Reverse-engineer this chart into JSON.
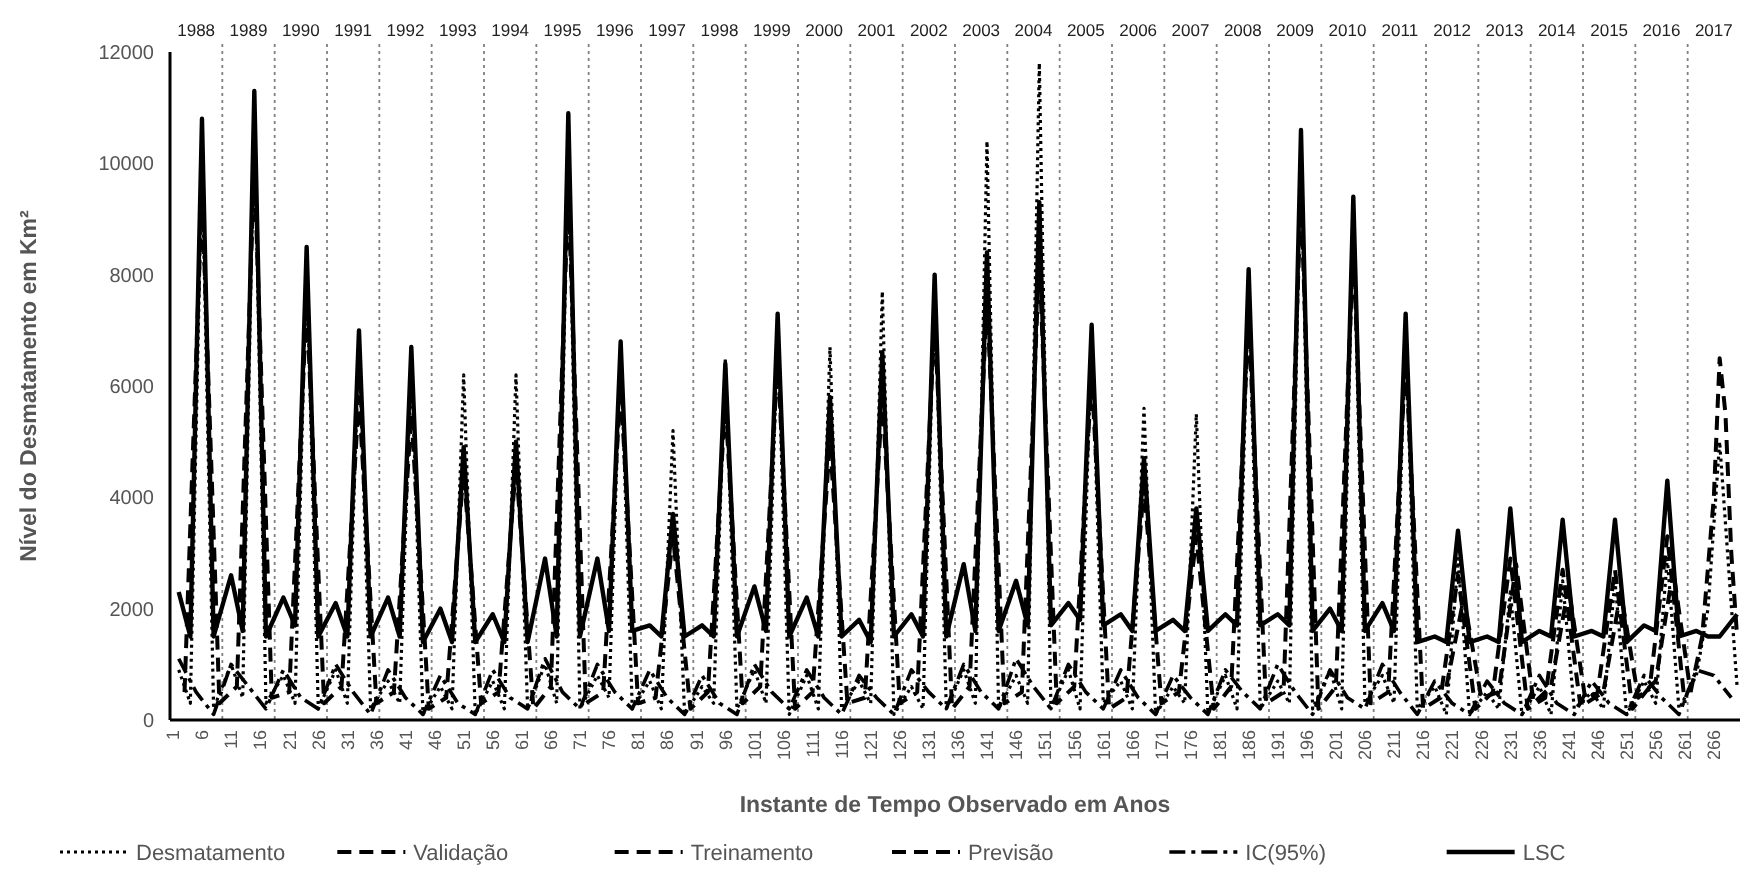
{
  "chart_data": {
    "type": "line",
    "xlabel": "Instante de Tempo Observado em Anos",
    "ylabel": "Nível do Desmatamento em Km²",
    "xlim": [
      0.5,
      270.5
    ],
    "ylim": [
      0,
      12000
    ],
    "xticks": [
      1,
      6,
      11,
      16,
      21,
      26,
      31,
      36,
      41,
      46,
      51,
      56,
      61,
      66,
      71,
      76,
      81,
      86,
      91,
      96,
      101,
      106,
      111,
      116,
      121,
      126,
      131,
      136,
      141,
      146,
      151,
      156,
      161,
      166,
      171,
      176,
      181,
      186,
      191,
      196,
      201,
      206,
      211,
      216,
      221,
      226,
      231,
      236,
      241,
      246,
      251,
      256,
      261,
      266
    ],
    "yticks": [
      0,
      2000,
      4000,
      6000,
      8000,
      10000,
      12000
    ],
    "legend": "bottom",
    "x2lim": [
      1987.5,
      2017.5
    ],
    "x2ticks": [
      1988,
      1989,
      1990,
      1991,
      1992,
      1993,
      1994,
      1995,
      1996,
      1997,
      1998,
      1999,
      2000,
      2001,
      2002,
      2003,
      2004,
      2005,
      2006,
      2007,
      2008,
      2009,
      2010,
      2011,
      2012,
      2013,
      2014,
      2015,
      2016,
      2017
    ],
    "ref_lines": [
      {
        "axis": "x",
        "value": 9.5,
        "color": "#808080",
        "line_style": "dotted"
      },
      {
        "axis": "x",
        "value": 18.5,
        "color": "#808080",
        "line_style": "dotted"
      },
      {
        "axis": "x",
        "value": 27.5,
        "color": "#808080",
        "line_style": "dotted"
      },
      {
        "axis": "x",
        "value": 36.5,
        "color": "#808080",
        "line_style": "dotted"
      },
      {
        "axis": "x",
        "value": 45.5,
        "color": "#808080",
        "line_style": "dotted"
      },
      {
        "axis": "x",
        "value": 54.5,
        "color": "#808080",
        "line_style": "dotted"
      },
      {
        "axis": "x",
        "value": 63.5,
        "color": "#808080",
        "line_style": "dotted"
      },
      {
        "axis": "x",
        "value": 72.5,
        "color": "#808080",
        "line_style": "dotted"
      },
      {
        "axis": "x",
        "value": 81.5,
        "color": "#808080",
        "line_style": "dotted"
      },
      {
        "axis": "x",
        "value": 90.5,
        "color": "#808080",
        "line_style": "dotted"
      },
      {
        "axis": "x",
        "value": 99.5,
        "color": "#808080",
        "line_style": "dotted"
      },
      {
        "axis": "x",
        "value": 108.5,
        "color": "#808080",
        "line_style": "dotted"
      },
      {
        "axis": "x",
        "value": 117.5,
        "color": "#808080",
        "line_style": "dotted"
      },
      {
        "axis": "x",
        "value": 126.5,
        "color": "#808080",
        "line_style": "dotted"
      },
      {
        "axis": "x",
        "value": 135.5,
        "color": "#808080",
        "line_style": "dotted"
      },
      {
        "axis": "x",
        "value": 144.5,
        "color": "#808080",
        "line_style": "dotted"
      },
      {
        "axis": "x",
        "value": 153.5,
        "color": "#808080",
        "line_style": "dotted"
      },
      {
        "axis": "x",
        "value": 162.5,
        "color": "#808080",
        "line_style": "dotted"
      },
      {
        "axis": "x",
        "value": 171.5,
        "color": "#808080",
        "line_style": "dotted"
      },
      {
        "axis": "x",
        "value": 180.5,
        "color": "#808080",
        "line_style": "dotted"
      },
      {
        "axis": "x",
        "value": 189.5,
        "color": "#808080",
        "line_style": "dotted"
      },
      {
        "axis": "x",
        "value": 198.5,
        "color": "#808080",
        "line_style": "dotted"
      },
      {
        "axis": "x",
        "value": 207.5,
        "color": "#808080",
        "line_style": "dotted"
      },
      {
        "axis": "x",
        "value": 216.5,
        "color": "#808080",
        "line_style": "dotted"
      },
      {
        "axis": "x",
        "value": 225.5,
        "color": "#808080",
        "line_style": "dotted"
      },
      {
        "axis": "x",
        "value": 234.5,
        "color": "#808080",
        "line_style": "dotted"
      },
      {
        "axis": "x",
        "value": 243.5,
        "color": "#808080",
        "line_style": "dotted"
      },
      {
        "axis": "x",
        "value": 252.5,
        "color": "#808080",
        "line_style": "dotted"
      },
      {
        "axis": "x",
        "value": 261.5,
        "color": "#808080",
        "line_style": "dotted"
      }
    ],
    "series": [
      {
        "name": "Desmatamento",
        "color": "#000000",
        "line_style": "dotted",
        "x": [
          2,
          4,
          6,
          8,
          11,
          13,
          15,
          17,
          20,
          22,
          24,
          26,
          29,
          31,
          33,
          35,
          38,
          40,
          42,
          44,
          47,
          49,
          51,
          53,
          56,
          58,
          60,
          62,
          65,
          67,
          69,
          71,
          74,
          76,
          78,
          80,
          83,
          85,
          87,
          89,
          92,
          94,
          96,
          98,
          101,
          103,
          105,
          107,
          110,
          112,
          114,
          116,
          119,
          121,
          123,
          125,
          128,
          130,
          132,
          134,
          137,
          139,
          141,
          143,
          146,
          148,
          150,
          152,
          155,
          157,
          159,
          161,
          164,
          166,
          168,
          170,
          173,
          175,
          177,
          179,
          182,
          184,
          186,
          188,
          191,
          193,
          195,
          197,
          200,
          202,
          204,
          206,
          209,
          211,
          213,
          215,
          218,
          220,
          222,
          224,
          227,
          229,
          231,
          233,
          236,
          238,
          240,
          242,
          245,
          247,
          249,
          251,
          254,
          256,
          258,
          260,
          263,
          265,
          267,
          270
        ],
        "values": [
          900,
          300,
          10100,
          200,
          1000,
          400,
          11000,
          300,
          800,
          300,
          8300,
          200,
          900,
          300,
          6800,
          200,
          700,
          300,
          6500,
          100,
          600,
          200,
          6200,
          100,
          700,
          200,
          6200,
          200,
          1000,
          300,
          10500,
          200,
          800,
          400,
          6700,
          200,
          700,
          200,
          5200,
          100,
          600,
          300,
          6500,
          200,
          900,
          300,
          7000,
          100,
          800,
          200,
          6700,
          200,
          700,
          300,
          7700,
          100,
          600,
          200,
          7900,
          200,
          900,
          300,
          10400,
          200,
          800,
          300,
          11800,
          200,
          900,
          200,
          6900,
          300,
          700,
          200,
          5600,
          100,
          600,
          300,
          5500,
          100,
          800,
          200,
          7900,
          200,
          700,
          300,
          10400,
          200,
          900,
          200,
          9200,
          300,
          800,
          300,
          7100,
          200,
          600,
          100,
          2900,
          100,
          500,
          200,
          2300,
          100,
          600,
          100,
          2500,
          200,
          500,
          200,
          2500,
          100,
          700,
          300,
          2900,
          200,
          800,
          2000,
          5000,
          600
        ]
      },
      {
        "name": "Validação",
        "color": "#000000",
        "line_style": "dashed",
        "x": [
          262,
          264,
          266,
          267,
          268,
          269,
          270
        ],
        "values": [
          500,
          1500,
          4000,
          6500,
          5500,
          3000,
          1500
        ]
      },
      {
        "name": "Treinamento",
        "color": "#000000",
        "line_style": "dashed",
        "x": [
          3,
          6,
          9,
          12,
          15,
          18,
          21,
          24,
          27,
          30,
          33,
          36,
          39,
          42,
          45,
          48,
          51,
          54,
          57,
          60,
          63,
          66,
          69,
          72,
          75,
          78,
          81,
          84,
          87,
          90,
          93,
          96,
          99,
          102,
          105,
          108,
          111,
          114,
          117,
          120,
          123,
          126,
          129,
          132,
          135,
          138,
          141,
          144,
          147,
          150,
          153,
          156,
          159,
          162,
          165,
          168,
          171,
          174,
          177,
          180,
          183,
          186,
          189,
          192,
          195,
          198,
          201,
          204,
          207,
          210,
          213,
          216,
          219,
          222,
          225,
          228,
          231,
          234,
          237,
          240,
          243,
          246,
          249,
          252,
          255,
          258,
          261
        ],
        "values": [
          500,
          9500,
          300,
          600,
          10000,
          400,
          500,
          7500,
          300,
          600,
          5800,
          300,
          500,
          5500,
          200,
          400,
          4500,
          300,
          500,
          4600,
          200,
          600,
          9500,
          300,
          500,
          6000,
          300,
          400,
          3300,
          200,
          500,
          5700,
          300,
          600,
          6500,
          200,
          500,
          5000,
          300,
          400,
          5800,
          300,
          500,
          7200,
          200,
          600,
          7600,
          300,
          500,
          8300,
          300,
          600,
          6200,
          200,
          400,
          4200,
          300,
          500,
          3300,
          200,
          600,
          7200,
          300,
          500,
          9400,
          200,
          600,
          8500,
          300,
          500,
          6500,
          200,
          400,
          2600,
          200,
          500,
          2900,
          200,
          400,
          2700,
          300,
          500,
          2700,
          200,
          600,
          3300,
          300
        ]
      },
      {
        "name": "Previsão",
        "color": "#000000",
        "line_style": "dashed",
        "x": [
          220,
          223,
          226,
          229,
          232,
          235,
          238,
          241,
          244,
          247,
          250,
          253,
          256,
          259,
          262
        ],
        "values": [
          600,
          2200,
          400,
          500,
          2800,
          300,
          600,
          2400,
          300,
          500,
          2300,
          400,
          700,
          2700,
          500
        ]
      },
      {
        "name": "IC(95%)",
        "color": "#000000",
        "line_style": "dashdot",
        "x": [
          2,
          5,
          8,
          11,
          14,
          17,
          20,
          23,
          26,
          29,
          32,
          35,
          38,
          41,
          44,
          47,
          50,
          53,
          56,
          59,
          62,
          65,
          68,
          71,
          74,
          77,
          80,
          83,
          86,
          89,
          92,
          95,
          98,
          101,
          104,
          107,
          110,
          113,
          116,
          119,
          122,
          125,
          128,
          131,
          134,
          137,
          140,
          143,
          146,
          149,
          152,
          155,
          158,
          161,
          164,
          167,
          170,
          173,
          176,
          179,
          182,
          185,
          188,
          191,
          194,
          197,
          200,
          203,
          206,
          209,
          212,
          215,
          218,
          221,
          224,
          227,
          230,
          233,
          236,
          239,
          242,
          245,
          248,
          251,
          254,
          257,
          260,
          263,
          266,
          269
        ],
        "values": [
          1100,
          500,
          100,
          1000,
          600,
          200,
          900,
          400,
          200,
          1000,
          500,
          100,
          900,
          400,
          100,
          800,
          300,
          100,
          900,
          400,
          200,
          1100,
          500,
          200,
          1000,
          500,
          200,
          900,
          400,
          100,
          800,
          300,
          100,
          1000,
          500,
          200,
          900,
          400,
          100,
          800,
          400,
          100,
          900,
          500,
          200,
          1000,
          500,
          200,
          1100,
          600,
          200,
          1000,
          500,
          200,
          900,
          400,
          100,
          800,
          400,
          100,
          900,
          500,
          200,
          1000,
          500,
          100,
          900,
          400,
          200,
          1000,
          500,
          100,
          700,
          300,
          100,
          700,
          300,
          100,
          800,
          300,
          100,
          700,
          300,
          100,
          800,
          400,
          100,
          900,
          800,
          400
        ]
      },
      {
        "name": "LSC",
        "color": "#000000",
        "line_style": "solid",
        "x": [
          2,
          4,
          6,
          8,
          11,
          13,
          15,
          17,
          20,
          22,
          24,
          26,
          29,
          31,
          33,
          35,
          38,
          40,
          42,
          44,
          47,
          49,
          51,
          53,
          56,
          58,
          60,
          62,
          65,
          67,
          69,
          71,
          74,
          76,
          78,
          80,
          83,
          85,
          87,
          89,
          92,
          94,
          96,
          98,
          101,
          103,
          105,
          107,
          110,
          112,
          114,
          116,
          119,
          121,
          123,
          125,
          128,
          130,
          132,
          134,
          137,
          139,
          141,
          143,
          146,
          148,
          150,
          152,
          155,
          157,
          159,
          161,
          164,
          166,
          168,
          170,
          173,
          175,
          177,
          179,
          182,
          184,
          186,
          188,
          191,
          193,
          195,
          197,
          200,
          202,
          204,
          206,
          209,
          211,
          213,
          215,
          218,
          220,
          222,
          224,
          227,
          229,
          231,
          233,
          236,
          238,
          240,
          242,
          245,
          247,
          249,
          251,
          254,
          256,
          258,
          260,
          263,
          265,
          267,
          270
        ],
        "values": [
          2300,
          1500,
          10800,
          1500,
          2600,
          1600,
          11300,
          1500,
          2200,
          1700,
          8500,
          1500,
          2100,
          1500,
          7000,
          1500,
          2200,
          1500,
          6700,
          1400,
          2000,
          1400,
          4900,
          1400,
          1900,
          1400,
          5000,
          1400,
          2900,
          1500,
          10900,
          1500,
          2900,
          1600,
          6800,
          1600,
          1700,
          1500,
          3700,
          1500,
          1700,
          1500,
          6400,
          1500,
          2400,
          1600,
          7300,
          1500,
          2200,
          1500,
          5800,
          1500,
          1800,
          1400,
          6600,
          1500,
          1900,
          1500,
          8000,
          1500,
          2800,
          1600,
          8400,
          1600,
          2500,
          1700,
          9300,
          1700,
          2100,
          1800,
          7100,
          1700,
          1900,
          1600,
          4700,
          1600,
          1800,
          1600,
          3800,
          1600,
          1900,
          1700,
          8100,
          1700,
          1900,
          1700,
          10600,
          1600,
          2000,
          1600,
          9400,
          1600,
          2100,
          1600,
          7300,
          1400,
          1500,
          1400,
          3400,
          1400,
          1500,
          1400,
          3800,
          1400,
          1600,
          1500,
          3600,
          1500,
          1600,
          1500,
          3600,
          1400,
          1700,
          1600,
          4300,
          1500,
          1600,
          1500,
          1500,
          1900
        ]
      }
    ]
  }
}
